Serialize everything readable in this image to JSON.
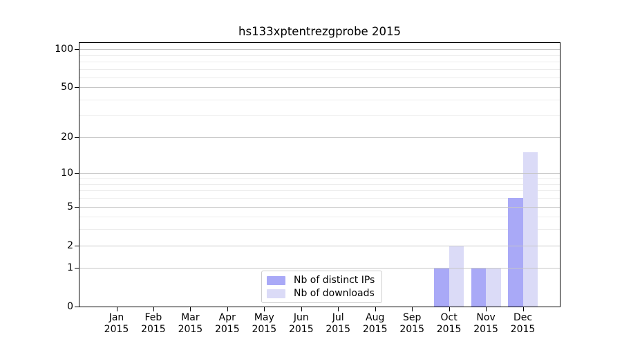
{
  "chart_data": {
    "type": "bar",
    "title": "hs133xptentrezgprobe 2015",
    "months": [
      "Jan",
      "Feb",
      "Mar",
      "Apr",
      "May",
      "Jun",
      "Jul",
      "Aug",
      "Sep",
      "Oct",
      "Nov",
      "Dec"
    ],
    "year": "2015",
    "series": [
      {
        "name": "Nb of distinct IPs",
        "color": "#a9a9f7",
        "values": [
          0,
          0,
          0,
          0,
          0,
          0,
          0,
          0,
          0,
          1,
          1,
          6
        ]
      },
      {
        "name": "Nb of downloads",
        "color": "#dbdbf7",
        "values": [
          0,
          0,
          0,
          0,
          0,
          0,
          0,
          0,
          0,
          2,
          1,
          15
        ]
      }
    ],
    "scale": "log1p",
    "ylim": [
      0,
      112
    ],
    "ytick_values": [
      0,
      1,
      2,
      5,
      10,
      20,
      50,
      100
    ],
    "ytick_labels": [
      "0",
      "1",
      "2",
      "5",
      "10",
      "20",
      "50",
      "100"
    ],
    "minor_gridline_values": [
      3,
      4,
      6,
      7,
      8,
      9,
      30,
      40,
      60,
      70,
      80,
      90
    ],
    "grid": true,
    "legend_position": "lower center",
    "colors": {
      "major_grid": "#c6c6c6",
      "minor_grid": "#ececec",
      "axis": "#000000",
      "background": "#ffffff"
    }
  }
}
